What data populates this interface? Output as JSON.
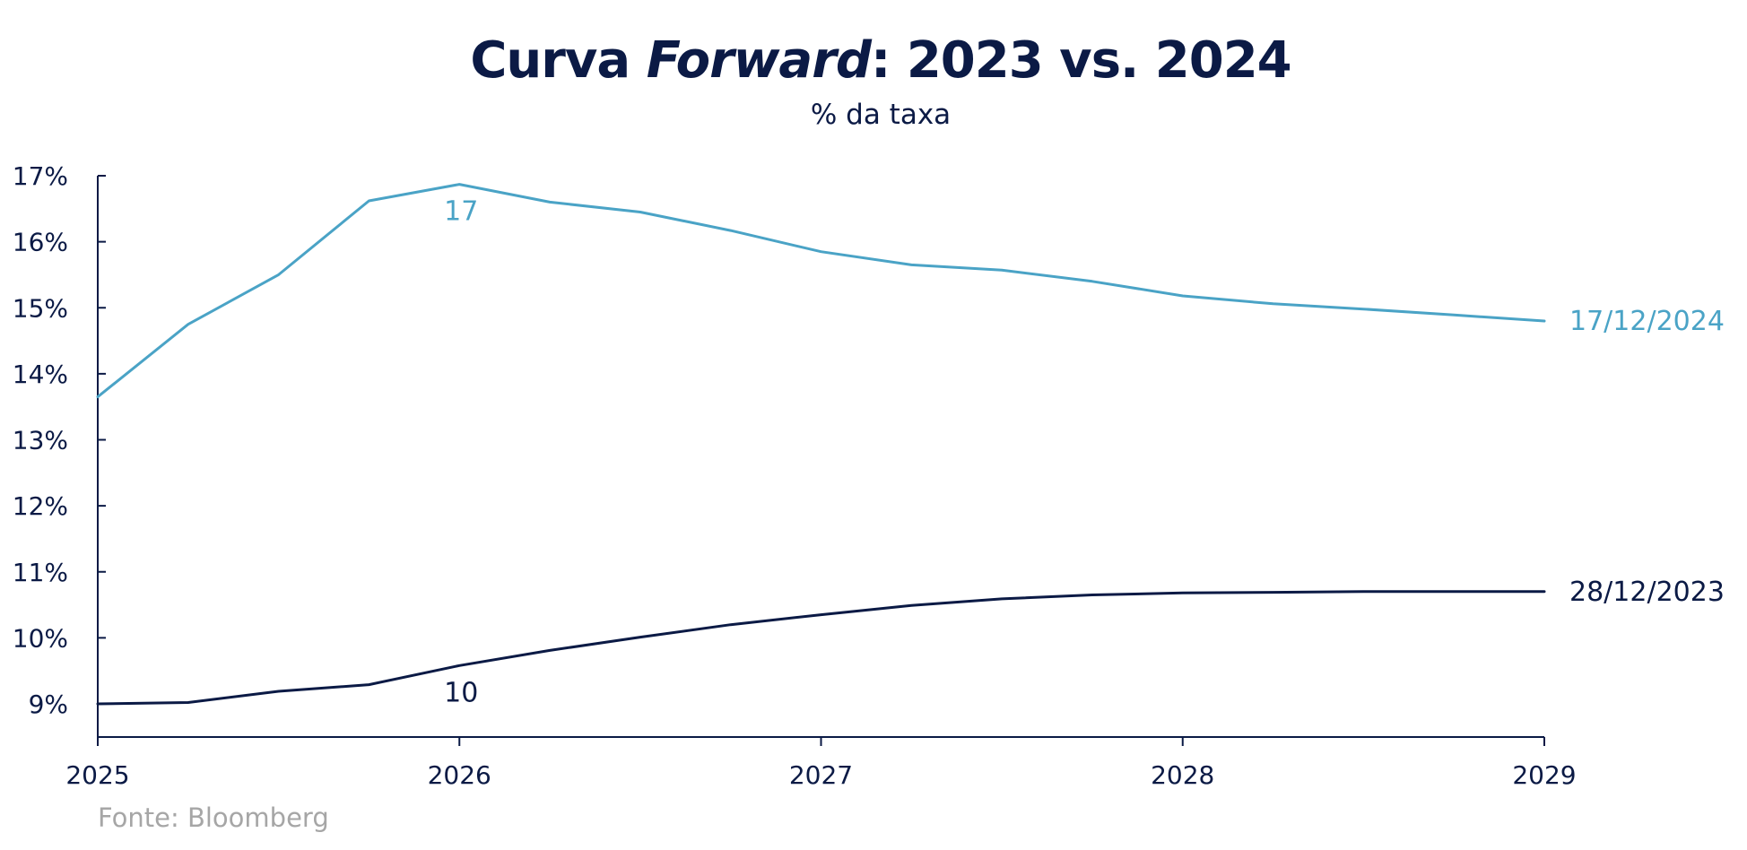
{
  "colors": {
    "dark": "#0b1a45",
    "light": "#4aa3c6",
    "source": "#a6a6a6",
    "axis": "#0b1a45"
  },
  "chart_data": {
    "type": "line",
    "title_parts": {
      "prefix": "Curva ",
      "italic": "Forward",
      "suffix": ": 2023 vs. 2024"
    },
    "subtitle": "% da taxa",
    "xlabel": "",
    "ylabel": "",
    "x_ticks": [
      "2025",
      "2026",
      "2027",
      "2028",
      "2029"
    ],
    "y_ticks": [
      "9%",
      "10%",
      "11%",
      "12%",
      "13%",
      "14%",
      "15%",
      "16%",
      "17%"
    ],
    "xlim": [
      2025,
      2029
    ],
    "ylim": [
      8.5,
      17
    ],
    "grid": false,
    "series": [
      {
        "name": "17/12/2024",
        "color_key": "light",
        "x": [
          2025,
          2025.25,
          2025.5,
          2025.75,
          2026,
          2026.25,
          2026.5,
          2026.75,
          2027,
          2027.25,
          2027.5,
          2027.75,
          2028,
          2028.25,
          2028.5,
          2028.75,
          2029
        ],
        "values": [
          13.65,
          14.75,
          15.5,
          16.62,
          16.87,
          16.6,
          16.45,
          16.17,
          15.85,
          15.65,
          15.57,
          15.4,
          15.18,
          15.06,
          14.98,
          14.89,
          14.8
        ],
        "annotation": {
          "x": 2026,
          "value": 17,
          "text": "17"
        }
      },
      {
        "name": "28/12/2023",
        "color_key": "dark",
        "x": [
          2025,
          2025.25,
          2025.5,
          2025.75,
          2026,
          2026.25,
          2026.5,
          2026.75,
          2027,
          2027.25,
          2027.5,
          2027.75,
          2028,
          2028.25,
          2028.5,
          2028.75,
          2029
        ],
        "values": [
          9.0,
          9.02,
          9.19,
          9.29,
          9.58,
          9.81,
          10.01,
          10.2,
          10.35,
          10.49,
          10.59,
          10.65,
          10.68,
          10.69,
          10.7,
          10.7,
          10.7
        ],
        "annotation": {
          "x": 2026,
          "value": 10,
          "text": "10"
        }
      }
    ],
    "source": "Fonte: Bloomberg"
  }
}
